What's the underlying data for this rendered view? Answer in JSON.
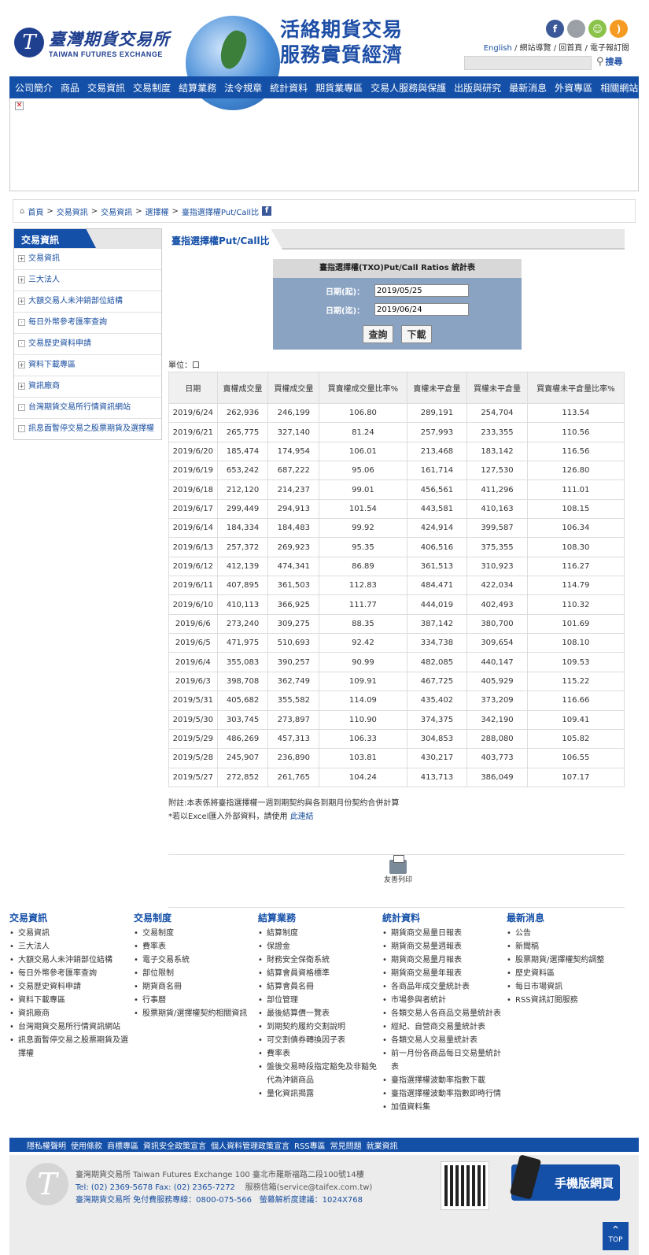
{
  "header": {
    "logo_cn": "臺灣期貨交易所",
    "logo_en": "TAIWAN FUTURES EXCHANGE",
    "slogan_line1": "活絡期貨交易",
    "slogan_line2": "服務實質經濟",
    "links": [
      "English",
      "網站導覽",
      "回首頁",
      "電子報訂閱"
    ],
    "search_label": "搜尋",
    "search_placeholder": ""
  },
  "nav": [
    "公司簡介",
    "商品",
    "交易資訊",
    "交易制度",
    "結算業務",
    "法令規章",
    "統計資料",
    "期貨業專區",
    "交易人服務與保護",
    "出版與研究",
    "最新消息",
    "外資專區",
    "相關網站"
  ],
  "breadcrumb": [
    "首頁",
    "交易資訊",
    "交易資訊",
    "選擇權",
    "臺指選擇權Put/Call比"
  ],
  "sidebar": {
    "title": "交易資訊",
    "items": [
      {
        "icon": "+",
        "label": "交易資訊"
      },
      {
        "icon": "+",
        "label": "三大法人"
      },
      {
        "icon": "+",
        "label": "大額交易人未沖銷部位結構"
      },
      {
        "icon": "·",
        "label": "每日外幣參考匯率查詢"
      },
      {
        "icon": "·",
        "label": "交易歷史資料申請"
      },
      {
        "icon": "+",
        "label": "資料下載專區"
      },
      {
        "icon": "+",
        "label": "資訊廠商"
      },
      {
        "icon": "·",
        "label": "台灣期貨交易所行情資訊網站"
      },
      {
        "icon": "·",
        "label": "訊息面暫停交易之股票期貨及選擇權"
      }
    ]
  },
  "content": {
    "title": "臺指選擇權Put/Call比",
    "query": {
      "heading": "臺指選擇權(TXO)Put/Call Ratios 統計表",
      "start_label": "日期(起)：",
      "start_value": "2019/05/25",
      "end_label": "日期(迄)：",
      "end_value": "2019/06/24",
      "query_button": "查詢",
      "download_button": "下載"
    },
    "unit": "單位：口",
    "table": {
      "headers": [
        "日期",
        "賣權成交量",
        "買權成交量",
        "買賣權成交量比率%",
        "賣權未平倉量",
        "買權未平倉量",
        "買賣權未平倉量比率%"
      ],
      "rows": [
        [
          "2019/6/24",
          "262,936",
          "246,199",
          "106.80",
          "289,191",
          "254,704",
          "113.54"
        ],
        [
          "2019/6/21",
          "265,775",
          "327,140",
          "81.24",
          "257,993",
          "233,355",
          "110.56"
        ],
        [
          "2019/6/20",
          "185,474",
          "174,954",
          "106.01",
          "213,468",
          "183,142",
          "116.56"
        ],
        [
          "2019/6/19",
          "653,242",
          "687,222",
          "95.06",
          "161,714",
          "127,530",
          "126.80"
        ],
        [
          "2019/6/18",
          "212,120",
          "214,237",
          "99.01",
          "456,561",
          "411,296",
          "111.01"
        ],
        [
          "2019/6/17",
          "299,449",
          "294,913",
          "101.54",
          "443,581",
          "410,163",
          "108.15"
        ],
        [
          "2019/6/14",
          "184,334",
          "184,483",
          "99.92",
          "424,914",
          "399,587",
          "106.34"
        ],
        [
          "2019/6/13",
          "257,372",
          "269,923",
          "95.35",
          "406,516",
          "375,355",
          "108.30"
        ],
        [
          "2019/6/12",
          "412,139",
          "474,341",
          "86.89",
          "361,513",
          "310,923",
          "116.27"
        ],
        [
          "2019/6/11",
          "407,895",
          "361,503",
          "112.83",
          "484,471",
          "422,034",
          "114.79"
        ],
        [
          "2019/6/10",
          "410,113",
          "366,925",
          "111.77",
          "444,019",
          "402,493",
          "110.32"
        ],
        [
          "2019/6/6",
          "273,240",
          "309,275",
          "88.35",
          "387,142",
          "380,700",
          "101.69"
        ],
        [
          "2019/6/5",
          "471,975",
          "510,693",
          "92.42",
          "334,738",
          "309,654",
          "108.10"
        ],
        [
          "2019/6/4",
          "355,083",
          "390,257",
          "90.99",
          "482,085",
          "440,147",
          "109.53"
        ],
        [
          "2019/6/3",
          "398,708",
          "362,749",
          "109.91",
          "467,725",
          "405,929",
          "115.22"
        ],
        [
          "2019/5/31",
          "405,682",
          "355,582",
          "114.09",
          "435,402",
          "373,209",
          "116.66"
        ],
        [
          "2019/5/30",
          "303,745",
          "273,897",
          "110.90",
          "374,375",
          "342,190",
          "109.41"
        ],
        [
          "2019/5/29",
          "486,269",
          "457,313",
          "106.33",
          "304,853",
          "288,080",
          "105.82"
        ],
        [
          "2019/5/28",
          "245,907",
          "236,890",
          "103.81",
          "430,217",
          "403,773",
          "106.55"
        ],
        [
          "2019/5/27",
          "272,852",
          "261,765",
          "104.24",
          "413,713",
          "386,049",
          "107.17"
        ]
      ]
    },
    "note1": "附註:本表係將臺指選擇權一週到期契約與各到期月份契約合併計算",
    "note2_prefix": "*若以Excel匯入外部資料，請使用",
    "note2_link": "此連結",
    "print_label": "友善列印"
  },
  "sitemap": [
    {
      "title": "交易資訊",
      "items": [
        "交易資訊",
        "三大法人",
        "大額交易人未沖銷部位結構",
        "每日外幣參考匯率查詢",
        "交易歷史資料申請",
        "資料下載專區",
        "資訊廠商",
        "台灣期貨交易所行情資訊網站",
        "訊息面暫停交易之股票期貨及選擇權"
      ]
    },
    {
      "title": "交易制度",
      "items": [
        "交易制度",
        "費率表",
        "電子交易系統",
        "部位限制",
        "期貨商名冊",
        "行事曆",
        "股票期貨/選擇權契約相關資訊"
      ]
    },
    {
      "title": "結算業務",
      "items": [
        "結算制度",
        "保證金",
        "財務安全保衛系統",
        "結算會員資格標準",
        "結算會員名冊",
        "部位管理",
        "最後結算價一覽表",
        "到期契約履約交割說明",
        "可交割債券轉換因子表",
        "費率表",
        "盤後交易時段指定豁免及非豁免代為沖銷商品",
        "量化資訊揭露"
      ]
    },
    {
      "title": "統計資料",
      "items": [
        "期貨商交易量日報表",
        "期貨商交易量週報表",
        "期貨商交易量月報表",
        "期貨商交易量年報表",
        "各商品年成交量統計表",
        "市場參與者統計",
        "各類交易人各商品交易量統計表",
        "經紀、自營商交易量統計表",
        "各類交易人交易量統計表",
        "前一月份各商品每日交易量統計表",
        "臺指選擇權波動率指數下載",
        "臺指選擇權波動率指數即時行情",
        "加值資料集"
      ]
    },
    {
      "title": "最新消息",
      "items": [
        "公告",
        "新聞稿",
        "股票期貨/選擇權契約調整",
        "歷史資料區",
        "每日市場資訊",
        "RSS資訊訂閱服務"
      ]
    }
  ],
  "footer_bar": [
    "隱私權聲明",
    "使用條款",
    "商標專區",
    "資訊安全政策宣言",
    "個人資料管理政策宣言",
    "RSS專區",
    "常見問題",
    "就業資訊"
  ],
  "footer": {
    "line1": "臺灣期貨交易所 Taiwan Futures Exchange 100 臺北市羅斯福路二段100號14樓",
    "line2a": "Tel: (02) 2369-5678 Fax: (02) 2365-7272",
    "line2b": "服務信箱(service@taifex.com.tw)",
    "line3a": "臺灣期貨交易所 免付費服務專線：0800-075-566",
    "line3b": "螢幕解析度建議：1024X768",
    "mobile_label": "手機版網頁",
    "top_label": "TOP"
  },
  "colors": {
    "nav": "#1550a8",
    "accent": "#1a4fa0"
  }
}
